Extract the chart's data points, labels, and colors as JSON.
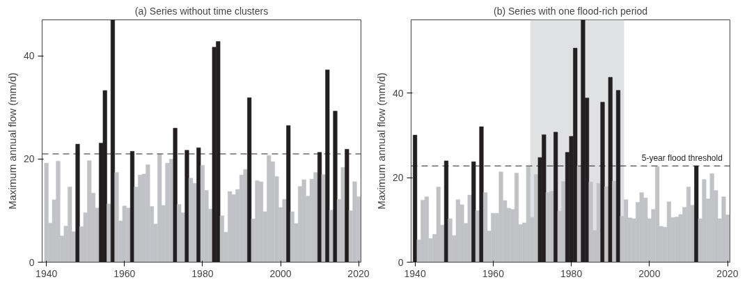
{
  "chart_data": [
    {
      "type": "bar",
      "title": "(a) Series without time clusters",
      "ylabel": "Maximum annual flow (mm/d)",
      "x": [
        1940,
        1941,
        1942,
        1943,
        1944,
        1945,
        1946,
        1947,
        1948,
        1949,
        1950,
        1951,
        1952,
        1953,
        1954,
        1955,
        1956,
        1957,
        1958,
        1959,
        1960,
        1961,
        1962,
        1963,
        1964,
        1965,
        1966,
        1967,
        1968,
        1969,
        1970,
        1971,
        1972,
        1973,
        1974,
        1975,
        1976,
        1977,
        1978,
        1979,
        1980,
        1981,
        1982,
        1983,
        1984,
        1985,
        1986,
        1987,
        1988,
        1989,
        1990,
        1991,
        1992,
        1993,
        1994,
        1995,
        1996,
        1997,
        1998,
        1999,
        2000,
        2001,
        2002,
        2003,
        2004,
        2005,
        2006,
        2007,
        2008,
        2009,
        2010,
        2011,
        2012,
        2013,
        2014,
        2015,
        2016,
        2017,
        2018,
        2019,
        2020
      ],
      "values": [
        19.2,
        7.6,
        12.1,
        19.6,
        5.1,
        7.0,
        14.6,
        5.9,
        22.9,
        6.9,
        9.6,
        19.7,
        13.4,
        10.5,
        23.1,
        33.3,
        11.3,
        47,
        17.4,
        8.0,
        10.9,
        10.5,
        21.5,
        14.6,
        16.9,
        17.1,
        18.9,
        10.8,
        7.4,
        20.9,
        11.0,
        19.2,
        20.0,
        26.0,
        11.2,
        9.6,
        21.7,
        16.3,
        15.3,
        22.2,
        18.8,
        13.9,
        10.3,
        41.7,
        42.8,
        9.0,
        5.8,
        13.7,
        13.1,
        14.1,
        16.9,
        18.0,
        31.9,
        8.4,
        15.8,
        15.6,
        9.8,
        20.7,
        19.5,
        16.6,
        10.6,
        12.2,
        26.5,
        9.8,
        7.5,
        14.7,
        16.0,
        12.8,
        16.1,
        17.4,
        21.3,
        17.0,
        37.3,
        10.1,
        29.3,
        12.2,
        18.4,
        21.9,
        10.0,
        15.6,
        12.7
      ],
      "colors": [
        "#c1c2c6",
        "#c1c2c6",
        "#c1c2c6",
        "#c1c2c6",
        "#c1c2c6",
        "#c1c2c6",
        "#c1c2c6",
        "#c1c2c6",
        "#231f20",
        "#c1c2c6",
        "#c1c2c6",
        "#c1c2c6",
        "#c1c2c6",
        "#c1c2c6",
        "#231f20",
        "#231f20",
        "#c1c2c6",
        "#231f20",
        "#c1c2c6",
        "#c1c2c6",
        "#c1c2c6",
        "#c1c2c6",
        "#231f20",
        "#c1c2c6",
        "#c1c2c6",
        "#c1c2c6",
        "#c1c2c6",
        "#c1c2c6",
        "#c1c2c6",
        "#c1c2c6",
        "#c1c2c6",
        "#c1c2c6",
        "#c1c2c6",
        "#231f20",
        "#c1c2c6",
        "#c1c2c6",
        "#231f20",
        "#c1c2c6",
        "#c1c2c6",
        "#231f20",
        "#c1c2c6",
        "#c1c2c6",
        "#c1c2c6",
        "#231f20",
        "#231f20",
        "#c1c2c6",
        "#c1c2c6",
        "#c1c2c6",
        "#c1c2c6",
        "#c1c2c6",
        "#c1c2c6",
        "#c1c2c6",
        "#231f20",
        "#c1c2c6",
        "#c1c2c6",
        "#c1c2c6",
        "#c1c2c6",
        "#c1c2c6",
        "#c1c2c6",
        "#c1c2c6",
        "#c1c2c6",
        "#c1c2c6",
        "#231f20",
        "#c1c2c6",
        "#c1c2c6",
        "#c1c2c6",
        "#c1c2c6",
        "#c1c2c6",
        "#c1c2c6",
        "#c1c2c6",
        "#231f20",
        "#c1c2c6",
        "#231f20",
        "#c1c2c6",
        "#231f20",
        "#c1c2c6",
        "#c1c2c6",
        "#231f20",
        "#c1c2c6",
        "#c1c2c6",
        "#c1c2c6"
      ],
      "xlim": [
        1938.9,
        2020.6
      ],
      "ylim": [
        0,
        47
      ],
      "xticks": [
        1940,
        1960,
        1980,
        2000,
        2020
      ],
      "yticks": [
        0,
        20,
        40
      ],
      "grid": false,
      "ref_lines": [
        {
          "axis": "y",
          "value": 21.0,
          "color": "#231f20",
          "line_style": "dashed"
        }
      ]
    },
    {
      "type": "bar",
      "title": "(b) Series with one flood-rich period",
      "ylabel": "Maximum annual flow (mm/d)",
      "x": [
        1940,
        1941,
        1942,
        1943,
        1944,
        1945,
        1946,
        1947,
        1948,
        1949,
        1950,
        1951,
        1952,
        1953,
        1954,
        1955,
        1956,
        1957,
        1958,
        1959,
        1960,
        1961,
        1962,
        1963,
        1964,
        1965,
        1966,
        1967,
        1968,
        1969,
        1970,
        1971,
        1972,
        1973,
        1974,
        1975,
        1976,
        1977,
        1978,
        1979,
        1980,
        1981,
        1982,
        1983,
        1984,
        1985,
        1986,
        1987,
        1988,
        1989,
        1990,
        1991,
        1992,
        1993,
        1994,
        1995,
        1996,
        1997,
        1998,
        1999,
        2000,
        2001,
        2002,
        2003,
        2004,
        2005,
        2006,
        2007,
        2008,
        2009,
        2010,
        2011,
        2012,
        2013,
        2014,
        2015,
        2016,
        2017,
        2018,
        2019,
        2020
      ],
      "values": [
        30.1,
        5.3,
        14.7,
        15.5,
        5.6,
        6.6,
        17.8,
        8.8,
        24.0,
        10.3,
        6.3,
        14.8,
        13.6,
        9.2,
        15.9,
        23.8,
        12.2,
        32.1,
        16.5,
        7.4,
        11.6,
        11.6,
        21.4,
        14.6,
        12.8,
        12.5,
        21.1,
        8.9,
        9.3,
        22.6,
        10.6,
        20.8,
        24.8,
        30.2,
        16.5,
        16.8,
        30.8,
        12.1,
        19.1,
        26.0,
        29.8,
        50.7,
        22.8,
        57.4,
        38.9,
        19.0,
        7.5,
        18.7,
        37.9,
        17.9,
        43.8,
        19.2,
        40.7,
        10.9,
        14.8,
        10.5,
        10.3,
        14.2,
        16.5,
        15.2,
        10.3,
        12.5,
        22.6,
        8.5,
        8.3,
        14.3,
        10.6,
        10.7,
        11.3,
        13.0,
        17.8,
        13.5,
        22.8,
        10.3,
        19.6,
        15.0,
        21.0,
        17.0,
        10.3,
        15.5,
        11.2
      ],
      "colors": [
        "#231f20",
        "#c1c2c6",
        "#c1c2c6",
        "#c1c2c6",
        "#c1c2c6",
        "#c1c2c6",
        "#c1c2c6",
        "#c1c2c6",
        "#231f20",
        "#c1c2c6",
        "#c1c2c6",
        "#c1c2c6",
        "#c1c2c6",
        "#c1c2c6",
        "#c1c2c6",
        "#231f20",
        "#c1c2c6",
        "#231f20",
        "#c1c2c6",
        "#c1c2c6",
        "#c1c2c6",
        "#c1c2c6",
        "#c1c2c6",
        "#c1c2c6",
        "#c1c2c6",
        "#c1c2c6",
        "#c1c2c6",
        "#c1c2c6",
        "#c1c2c6",
        "#c1c2c6",
        "#c1c2c6",
        "#c1c2c6",
        "#231f20",
        "#231f20",
        "#c1c2c6",
        "#c1c2c6",
        "#231f20",
        "#c1c2c6",
        "#c1c2c6",
        "#231f20",
        "#231f20",
        "#231f20",
        "#c1c2c6",
        "#231f20",
        "#231f20",
        "#c1c2c6",
        "#c1c2c6",
        "#c1c2c6",
        "#231f20",
        "#c1c2c6",
        "#231f20",
        "#c1c2c6",
        "#231f20",
        "#c1c2c6",
        "#c1c2c6",
        "#c1c2c6",
        "#c1c2c6",
        "#c1c2c6",
        "#c1c2c6",
        "#c1c2c6",
        "#c1c2c6",
        "#c1c2c6",
        "#c1c2c6",
        "#c1c2c6",
        "#c1c2c6",
        "#c1c2c6",
        "#c1c2c6",
        "#c1c2c6",
        "#c1c2c6",
        "#c1c2c6",
        "#c1c2c6",
        "#c1c2c6",
        "#231f20",
        "#c1c2c6",
        "#c1c2c6",
        "#c1c2c6",
        "#c1c2c6",
        "#c1c2c6",
        "#c1c2c6",
        "#c1c2c6",
        "#c1c2c6"
      ],
      "xlim": [
        1939,
        2020.6
      ],
      "ylim": [
        0,
        57.4
      ],
      "xticks": [
        1940,
        1960,
        1980,
        2000,
        2020
      ],
      "yticks": [
        0,
        20,
        40
      ],
      "grid": false,
      "bands": [
        {
          "axis": "x",
          "from": 1969.5,
          "to": 1993.5,
          "color": "#e0e1e3"
        }
      ],
      "ref_lines": [
        {
          "axis": "y",
          "value": 22.8,
          "label": "5-year flood threshold",
          "color": "#231f20",
          "line_style": "dashed"
        }
      ]
    }
  ]
}
